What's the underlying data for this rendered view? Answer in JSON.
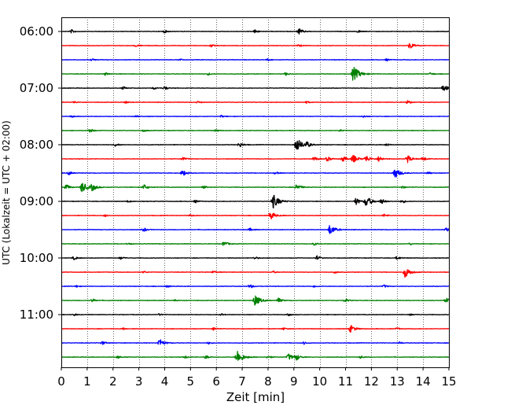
{
  "chart_data": {
    "type": "line",
    "title": "",
    "xlabel": "Zeit  [min]",
    "ylabel": "UTC (Lokalzeit = UTC + 02:00)",
    "xlim": [
      0,
      15
    ],
    "x_ticks": [
      "0",
      "1",
      "2",
      "3",
      "4",
      "5",
      "6",
      "7",
      "8",
      "9",
      "10",
      "11",
      "12",
      "13",
      "14",
      "15"
    ],
    "y_tick_labels": [
      "06:00",
      "07:00",
      "08:00",
      "09:00",
      "10:00",
      "11:00"
    ],
    "row_interval_min": 15,
    "grid": "vertical-dotted",
    "colors": [
      "#000000",
      "#ff0000",
      "#0000ff",
      "#008000"
    ],
    "series": [
      {
        "start": "06:00",
        "events": [
          [
            0.4,
            0.5
          ],
          [
            4.0,
            0.4
          ],
          [
            7.5,
            0.5
          ],
          [
            9.2,
            0.9
          ],
          [
            11.5,
            0.4
          ]
        ]
      },
      {
        "start": "06:15",
        "events": [
          [
            2.9,
            0.4
          ],
          [
            5.8,
            0.4
          ],
          [
            9.2,
            0.3
          ],
          [
            13.5,
            1.0
          ]
        ]
      },
      {
        "start": "06:30",
        "events": [
          [
            1.2,
            0.3
          ],
          [
            4.6,
            0.3
          ],
          [
            8.0,
            0.3
          ],
          [
            12.6,
            0.3
          ]
        ]
      },
      {
        "start": "06:45",
        "events": [
          [
            1.7,
            0.4
          ],
          [
            5.7,
            0.3
          ],
          [
            8.7,
            0.4
          ],
          [
            11.3,
            2.2
          ],
          [
            14.3,
            0.4
          ]
        ]
      },
      {
        "start": "07:00",
        "events": [
          [
            2.4,
            0.4
          ],
          [
            3.6,
            0.4
          ],
          [
            4.0,
            0.5
          ],
          [
            14.8,
            1.0
          ]
        ]
      },
      {
        "start": "07:15",
        "events": [
          [
            0.5,
            0.3
          ],
          [
            2.5,
            0.3
          ],
          [
            5.3,
            0.3
          ],
          [
            9.5,
            0.3
          ],
          [
            13.4,
            0.5
          ]
        ]
      },
      {
        "start": "07:30",
        "events": [
          [
            0.4,
            0.3
          ],
          [
            2.9,
            0.3
          ],
          [
            6.2,
            0.3
          ],
          [
            11.7,
            0.3
          ]
        ]
      },
      {
        "start": "07:45",
        "events": [
          [
            1.1,
            0.6
          ],
          [
            3.2,
            0.3
          ],
          [
            6.0,
            0.3
          ],
          [
            10.8,
            0.3
          ]
        ]
      },
      {
        "start": "08:00",
        "events": [
          [
            2.1,
            0.5
          ],
          [
            6.9,
            0.7
          ],
          [
            9.1,
            2.0
          ],
          [
            9.5,
            0.7
          ],
          [
            12.6,
            0.4
          ]
        ]
      },
      {
        "start": "08:15",
        "events": [
          [
            4.7,
            0.5
          ],
          [
            9.8,
            0.6
          ],
          [
            10.3,
            0.7
          ],
          [
            10.9,
            0.8
          ],
          [
            11.3,
            1.2
          ],
          [
            11.8,
            1.0
          ],
          [
            12.3,
            0.8
          ],
          [
            13.4,
            1.1
          ],
          [
            14.0,
            0.6
          ]
        ]
      },
      {
        "start": "08:30",
        "events": [
          [
            0.3,
            0.5
          ],
          [
            4.7,
            0.9
          ],
          [
            8.3,
            0.4
          ],
          [
            12.9,
            1.6
          ],
          [
            14.2,
            0.4
          ]
        ]
      },
      {
        "start": "08:45",
        "events": [
          [
            0.2,
            0.8
          ],
          [
            0.8,
            1.6
          ],
          [
            1.2,
            1.0
          ],
          [
            3.2,
            0.8
          ],
          [
            5.5,
            0.5
          ],
          [
            9.1,
            1.0
          ],
          [
            13.2,
            0.4
          ]
        ]
      },
      {
        "start": "09:00",
        "events": [
          [
            2.6,
            0.3
          ],
          [
            5.2,
            0.4
          ],
          [
            8.2,
            2.0
          ],
          [
            11.4,
            1.0
          ],
          [
            11.8,
            1.6
          ],
          [
            12.4,
            0.7
          ],
          [
            13.2,
            0.5
          ]
        ]
      },
      {
        "start": "09:15",
        "events": [
          [
            1.7,
            0.3
          ],
          [
            5.0,
            0.3
          ],
          [
            8.1,
            1.2
          ],
          [
            12.5,
            0.4
          ]
        ]
      },
      {
        "start": "09:30",
        "events": [
          [
            3.2,
            0.5
          ],
          [
            7.3,
            0.4
          ],
          [
            10.4,
            1.5
          ],
          [
            14.9,
            0.5
          ]
        ]
      },
      {
        "start": "09:45",
        "events": [
          [
            2.6,
            0.3
          ],
          [
            6.3,
            0.8
          ],
          [
            9.8,
            0.4
          ],
          [
            13.5,
            0.3
          ]
        ]
      },
      {
        "start": "10:00",
        "events": [
          [
            0.5,
            0.5
          ],
          [
            2.3,
            0.4
          ],
          [
            7.5,
            0.4
          ],
          [
            9.9,
            0.6
          ],
          [
            13.0,
            0.5
          ]
        ]
      },
      {
        "start": "10:15",
        "events": [
          [
            3.2,
            0.3
          ],
          [
            5.9,
            0.4
          ],
          [
            8.2,
            0.3
          ],
          [
            10.6,
            0.3
          ],
          [
            13.3,
            1.6
          ]
        ]
      },
      {
        "start": "10:30",
        "events": [
          [
            0.6,
            0.3
          ],
          [
            4.1,
            0.3
          ],
          [
            7.3,
            0.6
          ],
          [
            9.8,
            0.3
          ],
          [
            12.5,
            0.4
          ]
        ]
      },
      {
        "start": "10:45",
        "events": [
          [
            1.2,
            0.5
          ],
          [
            4.4,
            0.3
          ],
          [
            7.5,
            1.6
          ],
          [
            8.4,
            0.7
          ],
          [
            11.0,
            0.5
          ],
          [
            14.9,
            0.7
          ]
        ]
      },
      {
        "start": "11:00",
        "events": [
          [
            0.5,
            0.3
          ],
          [
            3.8,
            0.3
          ],
          [
            6.2,
            0.3
          ],
          [
            8.8,
            0.3
          ],
          [
            13.5,
            0.3
          ]
        ]
      },
      {
        "start": "11:15",
        "events": [
          [
            2.4,
            0.3
          ],
          [
            5.9,
            0.4
          ],
          [
            8.6,
            0.3
          ],
          [
            11.2,
            1.1
          ],
          [
            13.0,
            0.3
          ]
        ]
      },
      {
        "start": "11:30",
        "events": [
          [
            1.6,
            0.5
          ],
          [
            3.8,
            1.2
          ],
          [
            5.7,
            0.3
          ],
          [
            9.4,
            0.4
          ],
          [
            13.1,
            0.3
          ]
        ]
      },
      {
        "start": "11:45",
        "events": [
          [
            2.2,
            0.4
          ],
          [
            4.8,
            0.4
          ],
          [
            5.6,
            0.5
          ],
          [
            6.8,
            2.0
          ],
          [
            8.0,
            0.5
          ],
          [
            8.8,
            1.0
          ],
          [
            9.1,
            0.8
          ],
          [
            11.6,
            0.4
          ]
        ]
      }
    ]
  }
}
